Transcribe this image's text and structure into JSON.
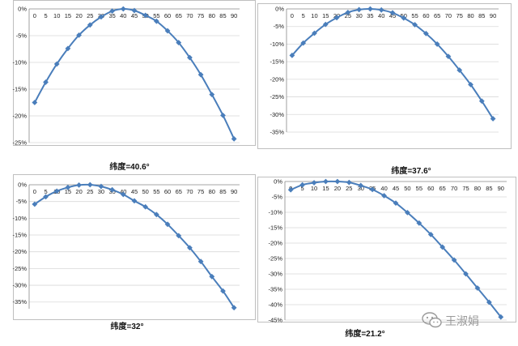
{
  "chart_data": [
    {
      "type": "line",
      "caption": "纬度=40.6°",
      "x": [
        0,
        5,
        10,
        15,
        20,
        25,
        30,
        35,
        40,
        45,
        50,
        55,
        60,
        65,
        70,
        75,
        80,
        85,
        90
      ],
      "values": [
        -17.5,
        -13.7,
        -10.3,
        -7.4,
        -4.9,
        -3.0,
        -1.5,
        -0.4,
        0.0,
        -0.3,
        -1.2,
        -2.3,
        -4.1,
        -6.3,
        -9.1,
        -12.3,
        -16.0,
        -19.9,
        -24.3
      ],
      "ylim": [
        -25,
        0
      ],
      "yticks": [
        0,
        -5,
        -10,
        -15,
        -20,
        -25
      ],
      "ytick_labels": [
        "0%",
        "-5%",
        "-10%",
        "-15%",
        "-20%",
        "-25%"
      ]
    },
    {
      "type": "line",
      "caption": "纬度=37.6°",
      "x": [
        0,
        5,
        10,
        15,
        20,
        25,
        30,
        35,
        40,
        45,
        50,
        55,
        60,
        65,
        70,
        75,
        80,
        85,
        90
      ],
      "values": [
        -13.2,
        -9.7,
        -6.9,
        -4.4,
        -2.5,
        -1.0,
        -0.2,
        0.0,
        -0.3,
        -1.1,
        -2.6,
        -4.5,
        -7.0,
        -10.0,
        -13.5,
        -17.4,
        -21.5,
        -26.2,
        -31.2
      ],
      "ylim": [
        -35,
        0
      ],
      "yticks": [
        0,
        -5,
        -10,
        -15,
        -20,
        -25,
        -30,
        -35
      ],
      "ytick_labels": [
        "0%",
        "-5%",
        "-10%",
        "-15%",
        "-20%",
        "-25%",
        "-30%",
        "-35%"
      ]
    },
    {
      "type": "line",
      "caption": "纬度=32°",
      "x": [
        0,
        5,
        10,
        15,
        20,
        25,
        30,
        35,
        40,
        45,
        50,
        55,
        60,
        65,
        70,
        75,
        80,
        85,
        90
      ],
      "values": [
        -5.8,
        -3.6,
        -1.9,
        -0.8,
        -0.1,
        0.0,
        -0.5,
        -1.5,
        -2.9,
        -4.8,
        -6.6,
        -8.9,
        -11.8,
        -15.2,
        -18.8,
        -22.9,
        -27.4,
        -31.7,
        -36.7
      ],
      "ylim": [
        -37,
        0
      ],
      "yticks": [
        0,
        -5,
        -10,
        -15,
        -20,
        -25,
        -30,
        -35
      ],
      "ytick_labels": [
        "0%",
        "-5%",
        "-10%",
        "-15%",
        "-20%",
        "-25%",
        "-30%",
        "-35%"
      ]
    },
    {
      "type": "line",
      "caption": "纬度=21.2°",
      "x": [
        0,
        5,
        10,
        15,
        20,
        25,
        30,
        35,
        40,
        45,
        50,
        55,
        60,
        65,
        70,
        75,
        80,
        85,
        90
      ],
      "values": [
        -2.7,
        -1.1,
        -0.4,
        0.0,
        0.0,
        -0.3,
        -1.3,
        -2.6,
        -4.6,
        -7.0,
        -10.1,
        -13.5,
        -17.2,
        -21.3,
        -25.5,
        -30.0,
        -34.6,
        -39.2,
        -44.0
      ],
      "ylim": [
        -45,
        0
      ],
      "yticks": [
        0,
        -5,
        -10,
        -15,
        -20,
        -25,
        -30,
        -35,
        -40,
        -45
      ],
      "ytick_labels": [
        "0%",
        "-5%",
        "-10%",
        "-15%",
        "-20%",
        "-25%",
        "-30%",
        "-35%",
        "-40%",
        "-45%"
      ]
    }
  ],
  "style": {
    "line_color": "#4a7ebb",
    "marker_color": "#4a7ebb",
    "grid_color": "#d9d9d9",
    "frame_color": "#bfbfbf"
  },
  "watermark": {
    "text": "王淑娟",
    "icon": "wechat-icon"
  }
}
